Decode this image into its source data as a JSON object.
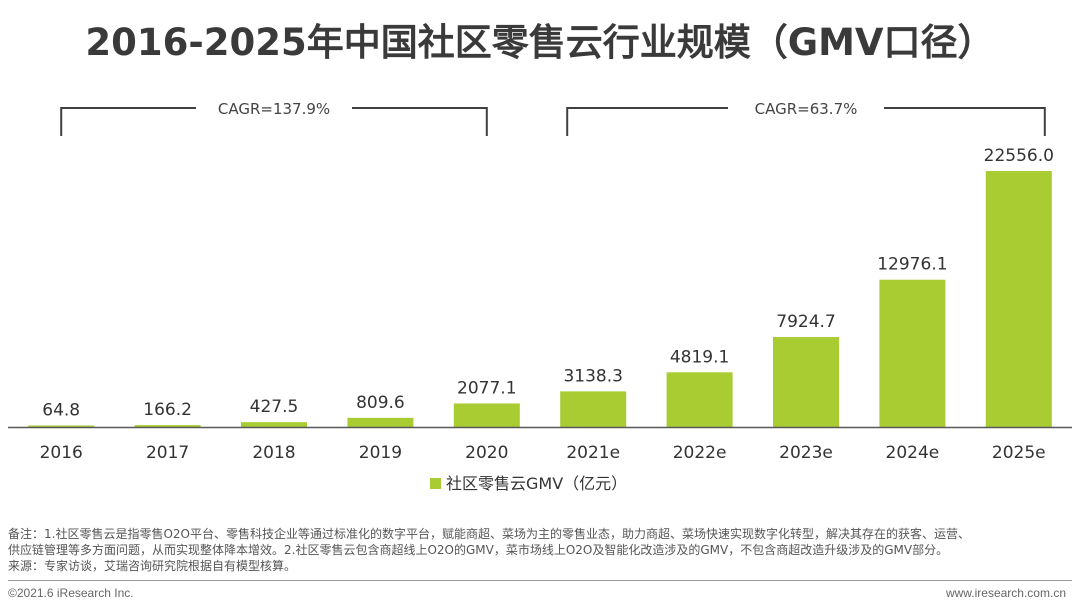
{
  "title": "2016-2025年中国社区零售云行业规模（GMV口径）",
  "chart_data": {
    "type": "bar",
    "title": "2016-2025年中国社区零售云行业规模（GMV口径）",
    "categories": [
      "2016",
      "2017",
      "2018",
      "2019",
      "2020",
      "2021e",
      "2022e",
      "2023e",
      "2024e",
      "2025e"
    ],
    "series": [
      {
        "name": "社区零售云GMV（亿元）",
        "values": [
          64.8,
          166.2,
          427.5,
          809.6,
          2077.1,
          3138.3,
          4819.1,
          7924.7,
          12976.1,
          22556.0
        ],
        "labels": [
          "64.8",
          "166.2",
          "427.5",
          "809.6",
          "2077.1",
          "3138.3",
          "4819.1",
          "7924.7",
          "12976.1",
          "22556.0"
        ]
      }
    ],
    "ylim": [
      0,
      22556
    ],
    "xlabel": "",
    "ylabel": "",
    "legend": "bottom-center",
    "annotations": [
      {
        "text": "CAGR=137.9%",
        "from": "2016",
        "to": "2020"
      },
      {
        "text": "CAGR=63.7%",
        "from": "2021e",
        "to": "2025e"
      }
    ],
    "colors": {
      "bar": "#a8cc32",
      "axis": "#595959",
      "bracket": "#404040"
    }
  },
  "footnote": {
    "line1": "备注：1.社区零售云是指零售O2O平台、零售科技企业等通过标准化的数字平台，赋能商超、菜场为主的零售业态，助力商超、菜场快速实现数字化转型，解决其存在的获客、运营、",
    "line2": "供应链管理等多方面问题，从而实现整体降本增效。2.社区零售云包含商超线上O2O的GMV，菜市场线上O2O及智能化改造涉及的GMV，不包含商超改造升级涉及的GMV部分。",
    "line3": "来源：专家访谈，艾瑞咨询研究院根据自有模型核算。"
  },
  "copyright": "©2021.6 iResearch Inc.",
  "website": "www.iresearch.com.cn"
}
